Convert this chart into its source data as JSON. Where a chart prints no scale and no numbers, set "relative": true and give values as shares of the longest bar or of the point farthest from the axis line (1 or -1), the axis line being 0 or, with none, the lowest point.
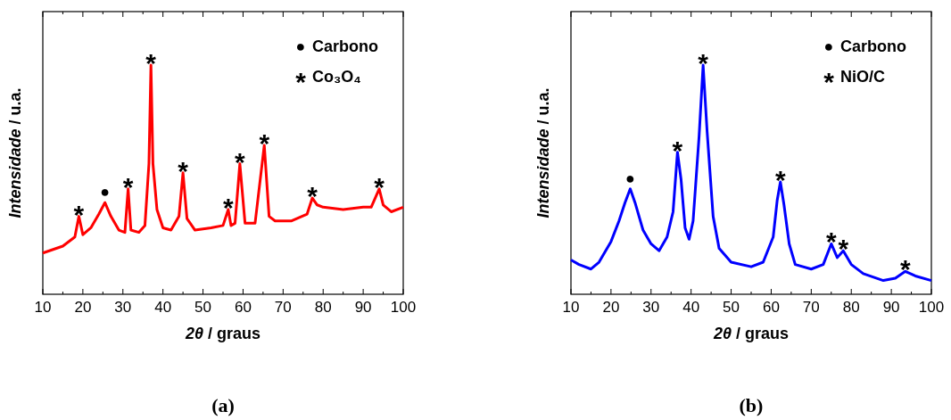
{
  "chart_data": [
    {
      "type": "line",
      "title": "(a)",
      "xlabel": "2θ / graus",
      "ylabel": "Intensidade / u.a.",
      "relative": true,
      "tick_labels": "x",
      "xlim": [
        10,
        100
      ],
      "xticks": [
        10,
        {
          "value": 15,
          "label": null
        },
        20,
        {
          "value": 25,
          "label": null
        },
        30,
        {
          "value": 35,
          "label": null
        },
        40,
        {
          "value": 45,
          "label": null
        },
        50,
        {
          "value": 55,
          "label": null
        },
        60,
        {
          "value": 65,
          "label": null
        },
        70,
        {
          "value": 75,
          "label": null
        },
        80,
        {
          "value": 85,
          "label": null
        },
        90,
        {
          "value": 95,
          "label": null
        },
        100
      ],
      "x": [
        10,
        15,
        18,
        19,
        20,
        22,
        24,
        25.5,
        27,
        29,
        30.5,
        31.3,
        32,
        34,
        35.5,
        36.5,
        37,
        37.5,
        38.5,
        40,
        42,
        44,
        45,
        46,
        48,
        52,
        55,
        56.3,
        57,
        58,
        59.2,
        60.5,
        63,
        65.3,
        66.5,
        68,
        72,
        76,
        77.3,
        78.5,
        80,
        85,
        90,
        92,
        94,
        95,
        97,
        100
      ],
      "series": [
        {
          "color": "#ff0000",
          "values": [
            0.18,
            0.21,
            0.25,
            0.34,
            0.26,
            0.29,
            0.35,
            0.4,
            0.34,
            0.28,
            0.27,
            0.46,
            0.28,
            0.27,
            0.3,
            0.57,
            1,
            0.57,
            0.37,
            0.29,
            0.28,
            0.34,
            0.53,
            0.33,
            0.28,
            0.29,
            0.3,
            0.37,
            0.3,
            0.31,
            0.57,
            0.31,
            0.31,
            0.65,
            0.34,
            0.32,
            0.32,
            0.35,
            0.42,
            0.39,
            0.38,
            0.37,
            0.38,
            0.38,
            0.46,
            0.39,
            0.36,
            0.38
          ]
        }
      ],
      "annotations": [
        "● Carbono",
        "* Co₃O₄",
        {
          "text": "*",
          "x": 19,
          "y": 0.34
        },
        {
          "text": "●",
          "x": 25.5,
          "y": 0.4
        },
        {
          "text": "*",
          "x": 31.3,
          "y": 0.46
        },
        {
          "text": "*",
          "x": 37,
          "y": 1
        },
        {
          "text": "*",
          "x": 45,
          "y": 0.53
        },
        {
          "text": "*",
          "x": 56.3,
          "y": 0.37
        },
        {
          "text": "*",
          "x": 59.2,
          "y": 0.57
        },
        {
          "text": "*",
          "x": 65.3,
          "y": 0.65
        },
        {
          "text": "*",
          "x": 77.3,
          "y": 0.42
        },
        {
          "text": "*",
          "x": 94,
          "y": 0.46
        }
      ]
    },
    {
      "type": "line",
      "title": "(b)",
      "xlabel": "2θ / graus",
      "ylabel": "Intensidade / u.a.",
      "relative": true,
      "tick_labels": "x",
      "xlim": [
        10,
        100
      ],
      "xticks": [
        10,
        {
          "value": 15,
          "label": null
        },
        20,
        {
          "value": 25,
          "label": null
        },
        30,
        {
          "value": 35,
          "label": null
        },
        40,
        {
          "value": 45,
          "label": null
        },
        50,
        {
          "value": 55,
          "label": null
        },
        60,
        {
          "value": 65,
          "label": null
        },
        70,
        {
          "value": 75,
          "label": null
        },
        80,
        {
          "value": 85,
          "label": null
        },
        90,
        {
          "value": 95,
          "label": null
        },
        100
      ],
      "x": [
        10,
        12,
        15,
        17,
        20,
        22,
        23.5,
        24.8,
        26,
        28,
        30,
        32,
        34,
        35.5,
        36.6,
        37.5,
        38.5,
        39.5,
        40.5,
        42,
        43,
        44,
        45.5,
        47,
        50,
        55,
        58,
        60.5,
        61.5,
        62.3,
        63.2,
        64.5,
        66,
        70,
        73,
        75,
        76.5,
        78,
        80,
        83,
        88,
        91,
        93.5,
        96,
        100
      ],
      "series": [
        {
          "color": "#0000ff",
          "values": [
            0.15,
            0.13,
            0.11,
            0.14,
            0.23,
            0.32,
            0.4,
            0.46,
            0.4,
            0.28,
            0.22,
            0.19,
            0.25,
            0.36,
            0.62,
            0.5,
            0.29,
            0.24,
            0.32,
            0.69,
            1,
            0.71,
            0.34,
            0.2,
            0.14,
            0.12,
            0.14,
            0.25,
            0.41,
            0.49,
            0.39,
            0.22,
            0.13,
            0.11,
            0.13,
            0.22,
            0.16,
            0.19,
            0.13,
            0.09,
            0.06,
            0.07,
            0.1,
            0.08,
            0.06
          ]
        }
      ],
      "annotations": [
        "● Carbono",
        "* NiO/C",
        {
          "text": "●",
          "x": 24.8,
          "y": 0.46
        },
        {
          "text": "*",
          "x": 36.6,
          "y": 0.62
        },
        {
          "text": "*",
          "x": 43,
          "y": 1
        },
        {
          "text": "*",
          "x": 62.3,
          "y": 0.49
        },
        {
          "text": "*",
          "x": 75,
          "y": 0.22
        },
        {
          "text": "*",
          "x": 78,
          "y": 0.19
        },
        {
          "text": "*",
          "x": 93.5,
          "y": 0.1
        }
      ]
    }
  ]
}
